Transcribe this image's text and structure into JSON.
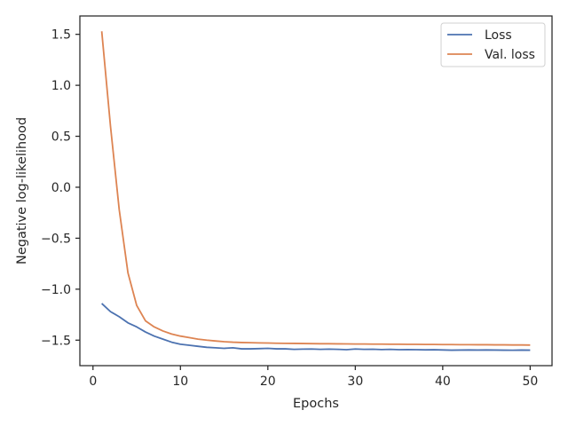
{
  "chart_data": {
    "type": "line",
    "title": "",
    "xlabel": "Epochs",
    "ylabel": "Negative log-likelihood",
    "xlim": [
      -1.5,
      52.5
    ],
    "ylim": [
      -1.75,
      1.68
    ],
    "xticks": [
      0,
      10,
      20,
      30,
      40,
      50
    ],
    "xtick_labels": [
      "0",
      "10",
      "20",
      "30",
      "40",
      "50"
    ],
    "yticks": [
      -1.5,
      -1.0,
      -0.5,
      0.0,
      0.5,
      1.0,
      1.5
    ],
    "ytick_labels": [
      "−1.5",
      "−1.0",
      "−0.5",
      "0.0",
      "0.5",
      "1.0",
      "1.5"
    ],
    "grid": false,
    "legend_position": "top-right",
    "x": [
      1,
      2,
      3,
      4,
      5,
      6,
      7,
      8,
      9,
      10,
      11,
      12,
      13,
      14,
      15,
      16,
      17,
      18,
      19,
      20,
      21,
      22,
      23,
      24,
      25,
      26,
      27,
      28,
      29,
      30,
      31,
      32,
      33,
      34,
      35,
      36,
      37,
      38,
      39,
      40,
      41,
      42,
      43,
      44,
      45,
      46,
      47,
      48,
      49,
      50
    ],
    "series": [
      {
        "name": "Loss",
        "color": "#4c72b0",
        "values": [
          -1.14,
          -1.22,
          -1.27,
          -1.33,
          -1.37,
          -1.42,
          -1.46,
          -1.49,
          -1.52,
          -1.54,
          -1.55,
          -1.56,
          -1.57,
          -1.575,
          -1.58,
          -1.575,
          -1.585,
          -1.585,
          -1.583,
          -1.58,
          -1.585,
          -1.585,
          -1.59,
          -1.588,
          -1.587,
          -1.59,
          -1.588,
          -1.59,
          -1.593,
          -1.587,
          -1.59,
          -1.589,
          -1.592,
          -1.59,
          -1.593,
          -1.592,
          -1.593,
          -1.595,
          -1.594,
          -1.596,
          -1.598,
          -1.597,
          -1.596,
          -1.597,
          -1.596,
          -1.597,
          -1.598,
          -1.599,
          -1.597,
          -1.598
        ]
      },
      {
        "name": "Val. loss",
        "color": "#dd8452",
        "values": [
          1.53,
          0.6,
          -0.22,
          -0.84,
          -1.16,
          -1.31,
          -1.37,
          -1.41,
          -1.44,
          -1.46,
          -1.475,
          -1.49,
          -1.5,
          -1.508,
          -1.515,
          -1.52,
          -1.523,
          -1.525,
          -1.527,
          -1.528,
          -1.53,
          -1.531,
          -1.532,
          -1.533,
          -1.534,
          -1.535,
          -1.535,
          -1.536,
          -1.537,
          -1.538,
          -1.538,
          -1.539,
          -1.539,
          -1.54,
          -1.54,
          -1.541,
          -1.541,
          -1.542,
          -1.542,
          -1.543,
          -1.543,
          -1.544,
          -1.544,
          -1.545,
          -1.545,
          -1.546,
          -1.546,
          -1.547,
          -1.547,
          -1.548
        ]
      }
    ]
  }
}
